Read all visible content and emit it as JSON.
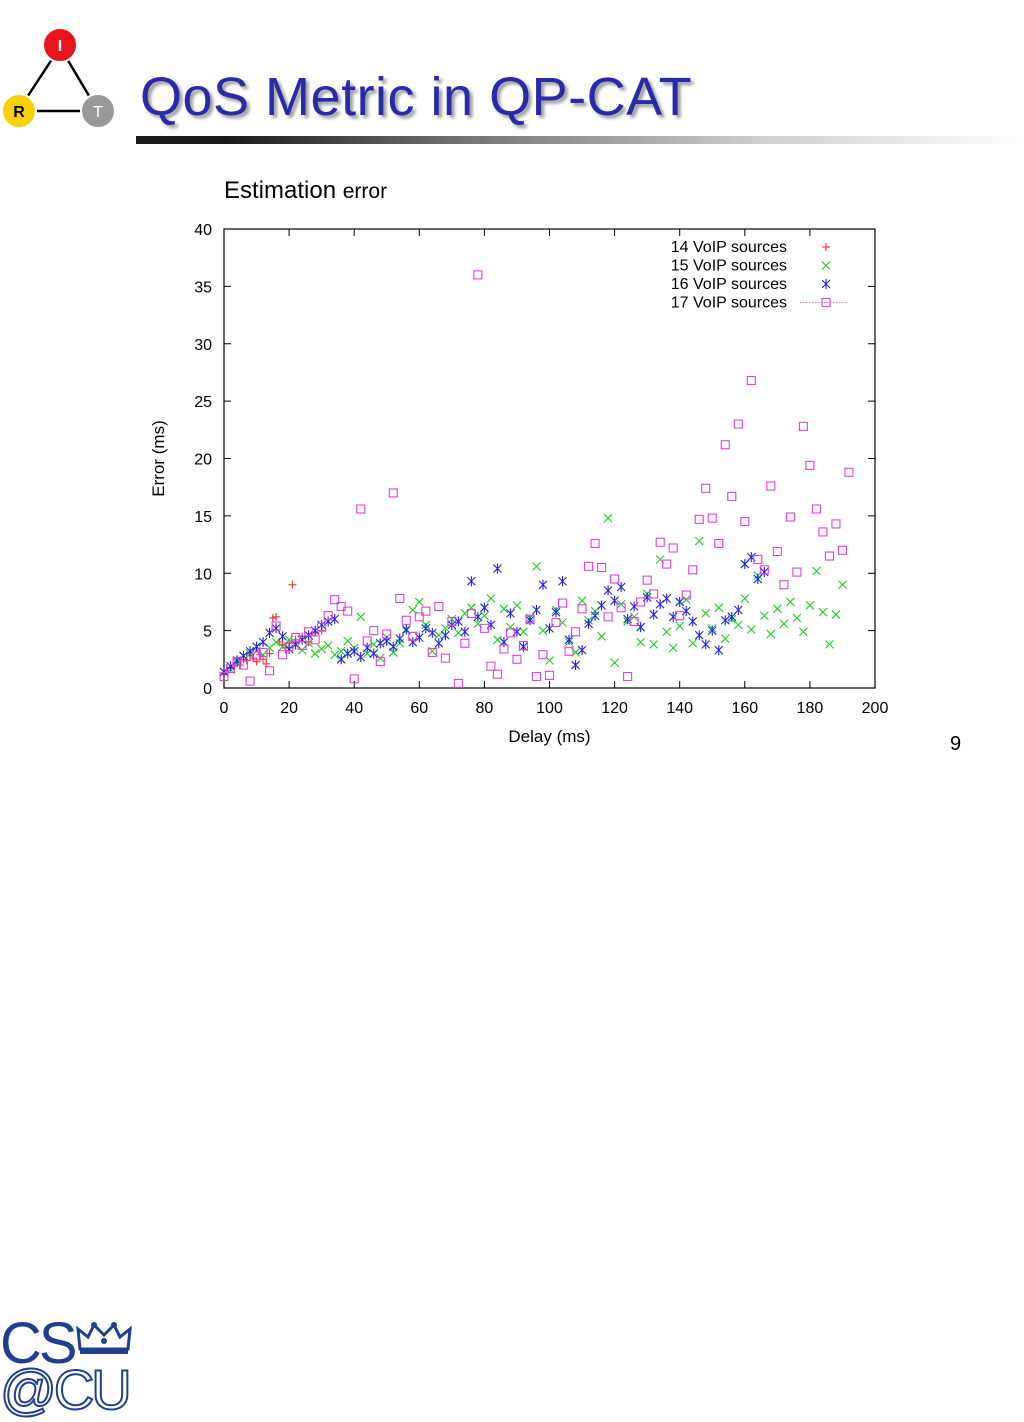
{
  "slide": {
    "title": "QoS Metric in QP-CAT",
    "caption_main": "Estimation",
    "caption_small": "error",
    "page_number": "9"
  },
  "logo": {
    "nodes": [
      "I",
      "R",
      "T"
    ],
    "colors": {
      "I": "#e8141b",
      "R": "#f7d20b",
      "T": "#9a9a9a"
    }
  },
  "cu_logo": {
    "line1": "CS",
    "line2": "@CU",
    "color": "#1f3f8c"
  },
  "chart_data": {
    "type": "scatter",
    "xlabel": "Delay (ms)",
    "ylabel": "Error (ms)",
    "xlim": [
      0,
      200
    ],
    "ylim": [
      0,
      40
    ],
    "xticks": [
      0,
      20,
      40,
      60,
      80,
      100,
      120,
      140,
      160,
      180,
      200
    ],
    "yticks": [
      0,
      5,
      10,
      15,
      20,
      25,
      30,
      35,
      40
    ],
    "legend_position": "top-right",
    "series": [
      {
        "name": "14 VoIP sources",
        "marker": "plus",
        "color": "#ff3030",
        "points": [
          [
            0,
            1.2
          ],
          [
            1,
            1.5
          ],
          [
            2,
            1.8
          ],
          [
            3,
            1.9
          ],
          [
            4,
            2.2
          ],
          [
            5,
            2.0
          ],
          [
            6,
            2.5
          ],
          [
            7,
            2.4
          ],
          [
            8,
            2.8
          ],
          [
            9,
            2.6
          ],
          [
            10,
            2.3
          ],
          [
            11,
            2.9
          ],
          [
            12,
            2.5
          ],
          [
            13,
            2.1
          ],
          [
            14,
            3.0
          ],
          [
            15,
            6.1
          ],
          [
            16,
            6.2
          ],
          [
            17,
            4.0
          ],
          [
            18,
            3.8
          ],
          [
            19,
            3.5
          ],
          [
            20,
            3.9
          ],
          [
            21,
            9.0
          ],
          [
            22,
            4.2
          ],
          [
            24,
            4.5
          ],
          [
            26,
            4.0
          ],
          [
            28,
            4.8
          ],
          [
            30,
            5.0
          ]
        ]
      },
      {
        "name": "15 VoIP sources",
        "marker": "x",
        "color": "#19d219",
        "points": [
          [
            2,
            1.6
          ],
          [
            4,
            2.2
          ],
          [
            6,
            2.8
          ],
          [
            8,
            3.0
          ],
          [
            10,
            3.2
          ],
          [
            12,
            2.9
          ],
          [
            14,
            3.5
          ],
          [
            16,
            4.0
          ],
          [
            18,
            3.6
          ],
          [
            20,
            4.2
          ],
          [
            22,
            3.8
          ],
          [
            24,
            3.3
          ],
          [
            26,
            3.9
          ],
          [
            28,
            3.0
          ],
          [
            30,
            3.4
          ],
          [
            32,
            3.7
          ],
          [
            34,
            2.9
          ],
          [
            36,
            3.2
          ],
          [
            38,
            4.1
          ],
          [
            40,
            3.5
          ],
          [
            42,
            6.2
          ],
          [
            44,
            3.0
          ],
          [
            46,
            3.8
          ],
          [
            48,
            2.6
          ],
          [
            50,
            4.4
          ],
          [
            52,
            3.1
          ],
          [
            54,
            3.9
          ],
          [
            56,
            5.0
          ],
          [
            58,
            6.8
          ],
          [
            60,
            7.5
          ],
          [
            62,
            5.5
          ],
          [
            64,
            3.2
          ],
          [
            66,
            4.6
          ],
          [
            68,
            5.2
          ],
          [
            70,
            6.0
          ],
          [
            72,
            4.8
          ],
          [
            74,
            6.5
          ],
          [
            76,
            7.0
          ],
          [
            78,
            5.6
          ],
          [
            80,
            6.3
          ],
          [
            82,
            7.8
          ],
          [
            84,
            4.2
          ],
          [
            86,
            6.9
          ],
          [
            88,
            5.3
          ],
          [
            90,
            7.2
          ],
          [
            92,
            4.9
          ],
          [
            94,
            6.1
          ],
          [
            96,
            10.6
          ],
          [
            98,
            5.0
          ],
          [
            100,
            2.4
          ],
          [
            102,
            6.8
          ],
          [
            104,
            5.7
          ],
          [
            106,
            4.0
          ],
          [
            108,
            3.1
          ],
          [
            110,
            7.6
          ],
          [
            112,
            5.9
          ],
          [
            114,
            6.7
          ],
          [
            116,
            4.5
          ],
          [
            118,
            14.8
          ],
          [
            120,
            2.2
          ],
          [
            122,
            7.3
          ],
          [
            124,
            5.8
          ],
          [
            126,
            6.2
          ],
          [
            128,
            4.0
          ],
          [
            130,
            8.2
          ],
          [
            132,
            3.8
          ],
          [
            134,
            11.2
          ],
          [
            136,
            4.9
          ],
          [
            138,
            3.5
          ],
          [
            140,
            5.4
          ],
          [
            142,
            7.7
          ],
          [
            144,
            3.9
          ],
          [
            146,
            12.8
          ],
          [
            148,
            6.5
          ],
          [
            150,
            5.2
          ],
          [
            152,
            7.0
          ],
          [
            154,
            4.3
          ],
          [
            156,
            6.0
          ],
          [
            158,
            5.5
          ],
          [
            160,
            7.8
          ],
          [
            162,
            5.1
          ],
          [
            164,
            9.8
          ],
          [
            166,
            6.3
          ],
          [
            168,
            4.7
          ],
          [
            170,
            6.9
          ],
          [
            172,
            5.6
          ],
          [
            174,
            7.5
          ],
          [
            176,
            6.1
          ],
          [
            178,
            4.9
          ],
          [
            180,
            7.2
          ],
          [
            182,
            10.2
          ],
          [
            184,
            6.6
          ],
          [
            186,
            3.8
          ],
          [
            188,
            6.4
          ],
          [
            190,
            9.0
          ]
        ]
      },
      {
        "name": "16 VoIP sources",
        "marker": "star",
        "color": "#2020e0",
        "points": [
          [
            0,
            1.4
          ],
          [
            2,
            1.9
          ],
          [
            4,
            2.4
          ],
          [
            6,
            2.8
          ],
          [
            8,
            3.2
          ],
          [
            10,
            3.6
          ],
          [
            12,
            4.0
          ],
          [
            14,
            4.8
          ],
          [
            16,
            5.2
          ],
          [
            18,
            4.5
          ],
          [
            20,
            3.4
          ],
          [
            22,
            3.8
          ],
          [
            24,
            4.2
          ],
          [
            26,
            4.6
          ],
          [
            28,
            5.0
          ],
          [
            30,
            5.5
          ],
          [
            32,
            5.8
          ],
          [
            34,
            6.0
          ],
          [
            36,
            2.5
          ],
          [
            38,
            3.0
          ],
          [
            40,
            3.2
          ],
          [
            42,
            2.7
          ],
          [
            44,
            3.5
          ],
          [
            46,
            3.0
          ],
          [
            48,
            3.9
          ],
          [
            50,
            4.1
          ],
          [
            52,
            3.6
          ],
          [
            54,
            4.3
          ],
          [
            56,
            5.1
          ],
          [
            58,
            4.0
          ],
          [
            60,
            4.4
          ],
          [
            62,
            5.2
          ],
          [
            64,
            4.8
          ],
          [
            66,
            3.9
          ],
          [
            68,
            4.6
          ],
          [
            70,
            5.5
          ],
          [
            72,
            5.8
          ],
          [
            74,
            4.9
          ],
          [
            76,
            9.3
          ],
          [
            78,
            6.2
          ],
          [
            80,
            7.0
          ],
          [
            82,
            5.5
          ],
          [
            84,
            10.4
          ],
          [
            86,
            4.0
          ],
          [
            88,
            6.5
          ],
          [
            90,
            4.9
          ],
          [
            92,
            3.6
          ],
          [
            94,
            5.9
          ],
          [
            96,
            6.8
          ],
          [
            98,
            9.0
          ],
          [
            100,
            5.2
          ],
          [
            102,
            6.6
          ],
          [
            104,
            9.3
          ],
          [
            106,
            4.2
          ],
          [
            108,
            2.0
          ],
          [
            110,
            3.3
          ],
          [
            112,
            5.6
          ],
          [
            114,
            6.3
          ],
          [
            116,
            7.2
          ],
          [
            118,
            8.5
          ],
          [
            120,
            7.6
          ],
          [
            122,
            8.8
          ],
          [
            124,
            6.0
          ],
          [
            126,
            7.1
          ],
          [
            128,
            5.3
          ],
          [
            130,
            7.9
          ],
          [
            132,
            6.4
          ],
          [
            134,
            7.3
          ],
          [
            136,
            7.8
          ],
          [
            138,
            6.2
          ],
          [
            140,
            7.5
          ],
          [
            142,
            6.7
          ],
          [
            144,
            5.8
          ],
          [
            146,
            4.6
          ],
          [
            148,
            3.8
          ],
          [
            150,
            5.0
          ],
          [
            152,
            3.3
          ],
          [
            154,
            5.9
          ],
          [
            156,
            6.2
          ],
          [
            158,
            6.8
          ],
          [
            160,
            10.8
          ],
          [
            162,
            11.4
          ],
          [
            164,
            9.5
          ],
          [
            166,
            10.1
          ]
        ]
      },
      {
        "name": "17 VoIP sources",
        "marker": "square",
        "color": "#e040e0",
        "points": [
          [
            0,
            1.0
          ],
          [
            2,
            1.7
          ],
          [
            4,
            2.3
          ],
          [
            6,
            2.0
          ],
          [
            8,
            0.6
          ],
          [
            10,
            2.8
          ],
          [
            12,
            3.1
          ],
          [
            14,
            1.5
          ],
          [
            16,
            5.4
          ],
          [
            18,
            2.9
          ],
          [
            20,
            3.6
          ],
          [
            22,
            4.4
          ],
          [
            24,
            3.7
          ],
          [
            26,
            4.9
          ],
          [
            28,
            4.2
          ],
          [
            30,
            5.3
          ],
          [
            32,
            6.3
          ],
          [
            34,
            7.7
          ],
          [
            36,
            7.1
          ],
          [
            38,
            6.7
          ],
          [
            40,
            0.8
          ],
          [
            42,
            15.6
          ],
          [
            44,
            4.1
          ],
          [
            46,
            5.0
          ],
          [
            48,
            2.3
          ],
          [
            50,
            4.7
          ],
          [
            52,
            17.0
          ],
          [
            54,
            7.8
          ],
          [
            56,
            5.9
          ],
          [
            58,
            4.5
          ],
          [
            60,
            6.2
          ],
          [
            62,
            6.7
          ],
          [
            64,
            3.1
          ],
          [
            66,
            7.1
          ],
          [
            68,
            2.6
          ],
          [
            70,
            5.8
          ],
          [
            72,
            0.4
          ],
          [
            74,
            3.9
          ],
          [
            76,
            6.5
          ],
          [
            78,
            36.0
          ],
          [
            80,
            5.2
          ],
          [
            82,
            1.9
          ],
          [
            84,
            1.2
          ],
          [
            86,
            3.4
          ],
          [
            88,
            4.8
          ],
          [
            90,
            2.5
          ],
          [
            92,
            3.7
          ],
          [
            94,
            6.0
          ],
          [
            96,
            1.0
          ],
          [
            98,
            2.9
          ],
          [
            100,
            1.1
          ],
          [
            102,
            5.7
          ],
          [
            104,
            7.4
          ],
          [
            106,
            3.2
          ],
          [
            108,
            4.9
          ],
          [
            110,
            6.9
          ],
          [
            112,
            10.6
          ],
          [
            114,
            12.6
          ],
          [
            116,
            10.5
          ],
          [
            118,
            6.2
          ],
          [
            120,
            9.5
          ],
          [
            122,
            7.0
          ],
          [
            124,
            1.0
          ],
          [
            126,
            5.8
          ],
          [
            128,
            7.5
          ],
          [
            130,
            9.4
          ],
          [
            132,
            8.2
          ],
          [
            134,
            12.7
          ],
          [
            136,
            10.8
          ],
          [
            138,
            12.2
          ],
          [
            140,
            6.3
          ],
          [
            142,
            8.1
          ],
          [
            144,
            10.3
          ],
          [
            146,
            14.7
          ],
          [
            148,
            17.4
          ],
          [
            150,
            14.8
          ],
          [
            152,
            12.6
          ],
          [
            154,
            21.2
          ],
          [
            156,
            16.7
          ],
          [
            158,
            23.0
          ],
          [
            160,
            14.5
          ],
          [
            162,
            26.8
          ],
          [
            164,
            11.2
          ],
          [
            166,
            10.3
          ],
          [
            168,
            17.6
          ],
          [
            170,
            11.9
          ],
          [
            172,
            9.0
          ],
          [
            174,
            14.9
          ],
          [
            176,
            10.1
          ],
          [
            178,
            22.8
          ],
          [
            180,
            19.4
          ],
          [
            182,
            15.6
          ],
          [
            184,
            13.6
          ],
          [
            186,
            11.5
          ],
          [
            188,
            14.3
          ],
          [
            190,
            12.0
          ],
          [
            192,
            18.8
          ]
        ]
      }
    ]
  }
}
